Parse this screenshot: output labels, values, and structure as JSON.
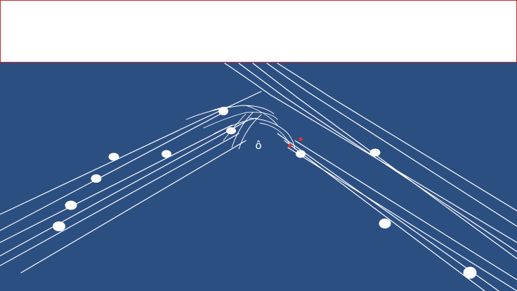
{
  "header": {
    "title": ""
  },
  "diagram": {
    "ego_label": "ô",
    "colors": {
      "background": "#2c4f82",
      "lane": "#ffffff",
      "vehicle": "#ffffff",
      "marker": "#e8352a",
      "header_border": "#c8282e"
    }
  }
}
